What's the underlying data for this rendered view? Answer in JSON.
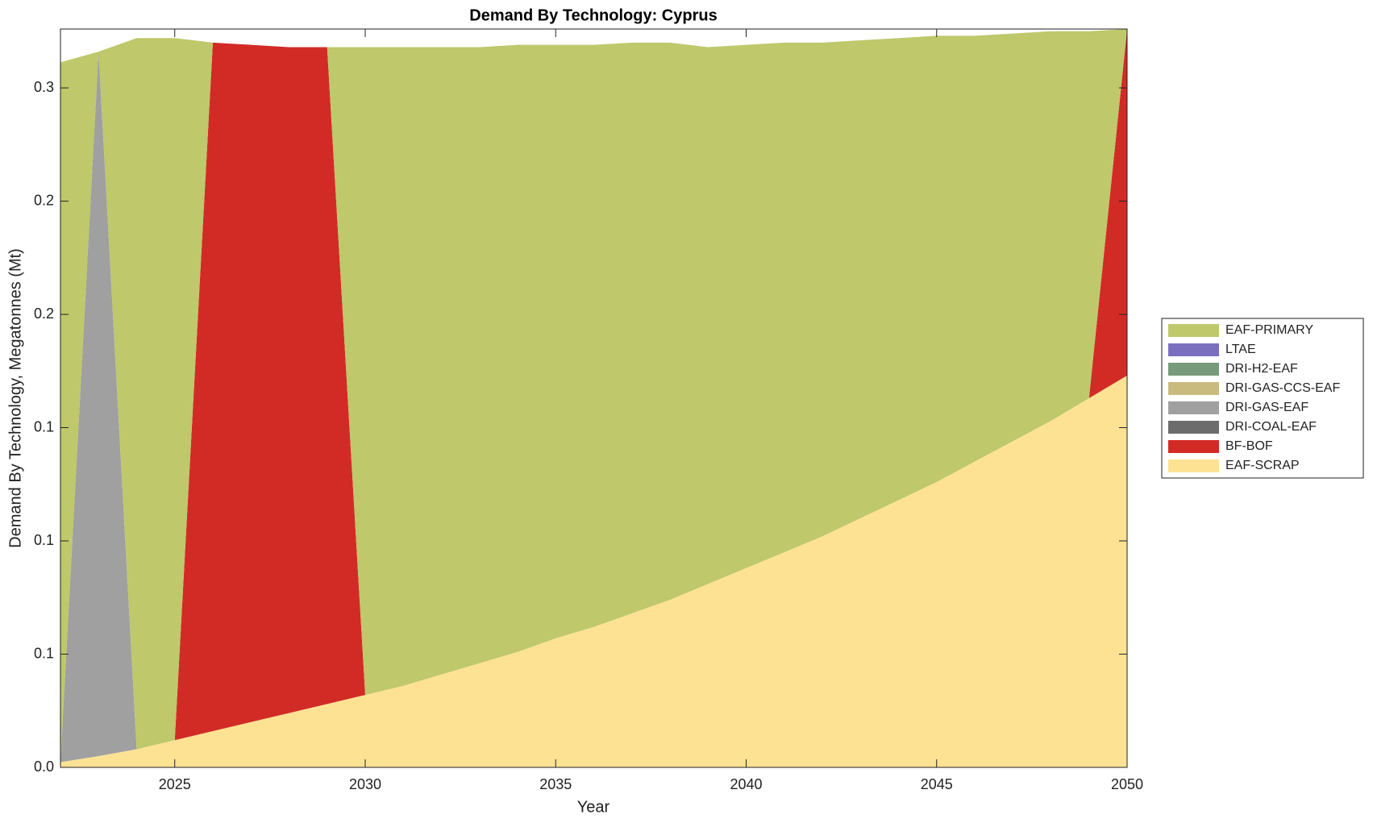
{
  "chart_data": {
    "type": "stacked_area",
    "title": "Demand By Technology: Cyprus",
    "xlabel": "Year",
    "ylabel": "Demand By Technology, Megatonnes (Mt)",
    "x": [
      2022,
      2023,
      2024,
      2025,
      2026,
      2027,
      2028,
      2029,
      2030,
      2031,
      2032,
      2033,
      2034,
      2035,
      2036,
      2037,
      2038,
      2039,
      2040,
      2041,
      2042,
      2043,
      2044,
      2045,
      2046,
      2047,
      2048,
      2049,
      2050
    ],
    "xlim": [
      2022,
      2050
    ],
    "xticks": [
      2025,
      2030,
      2035,
      2040,
      2045,
      2050
    ],
    "ylim": [
      0,
      0.326
    ],
    "yticks": [
      {
        "value": 0,
        "label": "0.0"
      },
      {
        "value": 0.05,
        "label": "0.1"
      },
      0.1,
      {
        "value": 0.15,
        "label": "0.1"
      },
      0.2,
      {
        "value": 0.25,
        "label": "0.2"
      },
      0.3
    ],
    "legend": "right",
    "series": [
      {
        "name": "EAF-SCRAP",
        "color": "#fde293",
        "values": [
          0.0023,
          0.005,
          0.008,
          0.012,
          0.016,
          0.02,
          0.024,
          0.028,
          0.032,
          0.036,
          0.041,
          0.046,
          0.051,
          0.057,
          0.062,
          0.068,
          0.074,
          0.081,
          0.088,
          0.095,
          0.102,
          0.11,
          0.118,
          0.126,
          0.135,
          0.144,
          0.153,
          0.163,
          0.173
        ]
      },
      {
        "name": "BF-BOF",
        "color": "#d22b26",
        "values": [
          0,
          0,
          0,
          0,
          0.304,
          0.299,
          0.294,
          0.29,
          0,
          0,
          0,
          0,
          0,
          0,
          0,
          0,
          0,
          0,
          0,
          0,
          0,
          0,
          0,
          0,
          0,
          0,
          0,
          0,
          0.153
        ]
      },
      {
        "name": "DRI-COAL-EAF",
        "color": "#6c6c6c",
        "values": [
          0,
          0,
          0,
          0,
          0,
          0,
          0,
          0,
          0,
          0,
          0,
          0,
          0,
          0,
          0,
          0,
          0,
          0,
          0,
          0,
          0,
          0,
          0,
          0,
          0,
          0,
          0,
          0,
          0
        ]
      },
      {
        "name": "DRI-GAS-EAF",
        "color": "#a0a0a0",
        "values": [
          0,
          0.311,
          0,
          0,
          0,
          0,
          0,
          0,
          0,
          0,
          0,
          0,
          0,
          0,
          0,
          0,
          0,
          0,
          0,
          0,
          0,
          0,
          0,
          0,
          0,
          0,
          0,
          0,
          0
        ]
      },
      {
        "name": "DRI-GAS-CCS-EAF",
        "color": "#c9bb7e",
        "values": [
          0,
          0,
          0,
          0,
          0,
          0,
          0,
          0,
          0,
          0,
          0,
          0,
          0,
          0,
          0,
          0,
          0,
          0,
          0,
          0,
          0,
          0,
          0,
          0,
          0,
          0,
          0,
          0,
          0
        ]
      },
      {
        "name": "DRI-H2-EAF",
        "color": "#789a7c",
        "values": [
          0,
          0,
          0,
          0,
          0,
          0,
          0,
          0,
          0,
          0,
          0,
          0,
          0,
          0,
          0,
          0,
          0,
          0,
          0,
          0,
          0,
          0,
          0,
          0,
          0,
          0,
          0,
          0,
          0
        ]
      },
      {
        "name": "LTAE",
        "color": "#7a6fbf",
        "values": [
          0,
          0,
          0,
          0,
          0,
          0,
          0,
          0,
          0,
          0,
          0,
          0,
          0,
          0,
          0,
          0,
          0,
          0,
          0,
          0,
          0,
          0,
          0,
          0,
          0,
          0,
          0,
          0,
          0
        ]
      },
      {
        "name": "EAF-PRIMARY",
        "color": "#bfc86b",
        "values": [
          0.309,
          0,
          0.314,
          0.31,
          0,
          0,
          0,
          0,
          0.286,
          0.282,
          0.277,
          0.272,
          0.268,
          0.262,
          0.257,
          0.252,
          0.246,
          0.237,
          0.231,
          0.225,
          0.218,
          0.211,
          0.204,
          0.197,
          0.188,
          0.18,
          0.172,
          0.162,
          0
        ]
      }
    ]
  }
}
